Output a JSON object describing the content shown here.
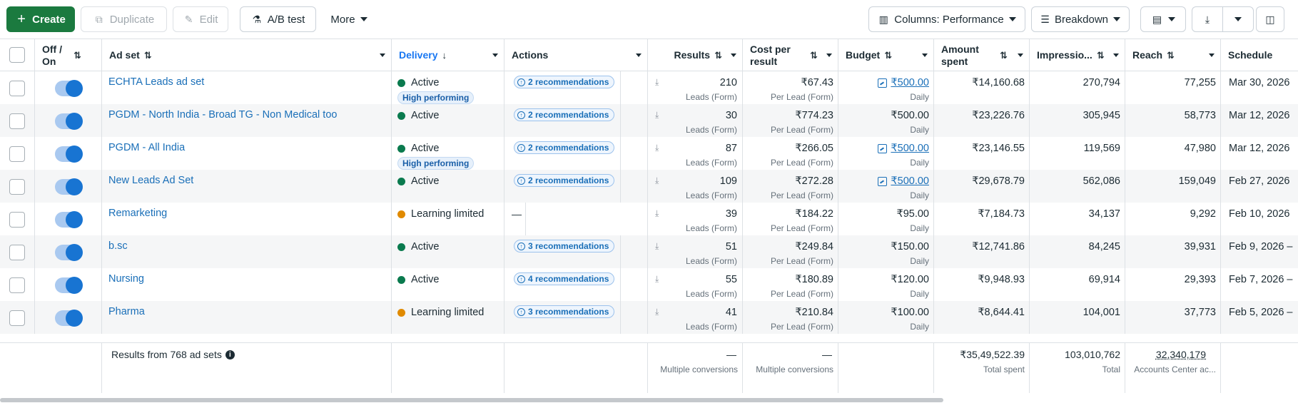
{
  "toolbar": {
    "create": "Create",
    "duplicate": "Duplicate",
    "edit": "Edit",
    "ab_test": "A/B test",
    "more": "More",
    "columns": "Columns: Performance",
    "breakdown": "Breakdown"
  },
  "columns": {
    "off_on": "Off / On",
    "ad_set": "Ad set",
    "delivery": "Delivery",
    "actions": "Actions",
    "results": "Results",
    "cost": "Cost per result",
    "budget": "Budget",
    "amount": "Amount spent",
    "impressions": "Impressio...",
    "reach": "Reach",
    "schedule": "Schedule"
  },
  "rows": [
    {
      "name": "ECHTA Leads ad set",
      "status": "Active",
      "badge": "High performing",
      "rec": "2 recommendations",
      "results": "210",
      "results_sub": "Leads (Form)",
      "cost": "₹67.43",
      "cost_sub": "Per Lead (Form)",
      "budget": "₹500.00",
      "budget_sub": "Daily",
      "amount": "₹14,160.68",
      "impressions": "270,794",
      "reach": "77,255",
      "schedule": "Mar 30, 2026"
    },
    {
      "name": "PGDM - North India - Broad TG - Non Medical too",
      "status": "Active",
      "badge": "",
      "rec": "2 recommendations",
      "results": "30",
      "results_sub": "Leads (Form)",
      "cost": "₹774.23",
      "cost_sub": "Per Lead (Form)",
      "budget": "₹500.00",
      "budget_sub": "Daily",
      "amount": "₹23,226.76",
      "impressions": "305,945",
      "reach": "58,773",
      "schedule": "Mar 12, 2026"
    },
    {
      "name": "PGDM - All India",
      "status": "Active",
      "badge": "High performing",
      "rec": "2 recommendations",
      "results": "87",
      "results_sub": "Leads (Form)",
      "cost": "₹266.05",
      "cost_sub": "Per Lead (Form)",
      "budget": "₹500.00",
      "budget_sub": "Daily",
      "amount": "₹23,146.55",
      "impressions": "119,569",
      "reach": "47,980",
      "schedule": "Mar 12, 2026"
    },
    {
      "name": "New Leads Ad Set",
      "status": "Active",
      "badge": "",
      "rec": "2 recommendations",
      "results": "109",
      "results_sub": "Leads (Form)",
      "cost": "₹272.28",
      "cost_sub": "Per Lead (Form)",
      "budget": "₹500.00",
      "budget_sub": "Daily",
      "amount": "₹29,678.79",
      "impressions": "562,086",
      "reach": "159,049",
      "schedule": "Feb 27, 2026"
    },
    {
      "name": "Remarketing",
      "status": "Learning limited",
      "badge": "",
      "rec": "",
      "results": "39",
      "results_sub": "Leads (Form)",
      "cost": "₹184.22",
      "cost_sub": "Per Lead (Form)",
      "budget": "₹95.00",
      "budget_sub": "Daily",
      "amount": "₹7,184.73",
      "impressions": "34,137",
      "reach": "9,292",
      "schedule": "Feb 10, 2026"
    },
    {
      "name": "b.sc",
      "status": "Active",
      "badge": "",
      "rec": "3 recommendations",
      "results": "51",
      "results_sub": "Leads (Form)",
      "cost": "₹249.84",
      "cost_sub": "Per Lead (Form)",
      "budget": "₹150.00",
      "budget_sub": "Daily",
      "amount": "₹12,741.86",
      "impressions": "84,245",
      "reach": "39,931",
      "schedule": "Feb 9, 2026 –"
    },
    {
      "name": "Nursing",
      "status": "Active",
      "badge": "",
      "rec": "4 recommendations",
      "results": "55",
      "results_sub": "Leads (Form)",
      "cost": "₹180.89",
      "cost_sub": "Per Lead (Form)",
      "budget": "₹120.00",
      "budget_sub": "Daily",
      "amount": "₹9,948.93",
      "impressions": "69,914",
      "reach": "29,393",
      "schedule": "Feb 7, 2026 –"
    },
    {
      "name": "Pharma",
      "status": "Learning limited",
      "badge": "",
      "rec": "3 recommendations",
      "results": "41",
      "results_sub": "Leads (Form)",
      "cost": "₹210.84",
      "cost_sub": "Per Lead (Form)",
      "budget": "₹100.00",
      "budget_sub": "Daily",
      "amount": "₹8,644.41",
      "impressions": "104,001",
      "reach": "37,773",
      "schedule": "Feb 5, 2026 –"
    }
  ],
  "footer": {
    "summary": "Results from 768 ad sets",
    "results": "—",
    "results_sub": "Multiple conversions",
    "cost": "—",
    "cost_sub": "Multiple conversions",
    "amount": "₹35,49,522.39",
    "amount_sub": "Total spent",
    "impressions": "103,010,762",
    "impressions_sub": "Total",
    "reach": "32,340,179",
    "reach_sub": "Accounts Center ac..."
  },
  "colors": {
    "active": "#0a7a4e",
    "learning": "#e08a00",
    "accent": "#1877f2"
  }
}
